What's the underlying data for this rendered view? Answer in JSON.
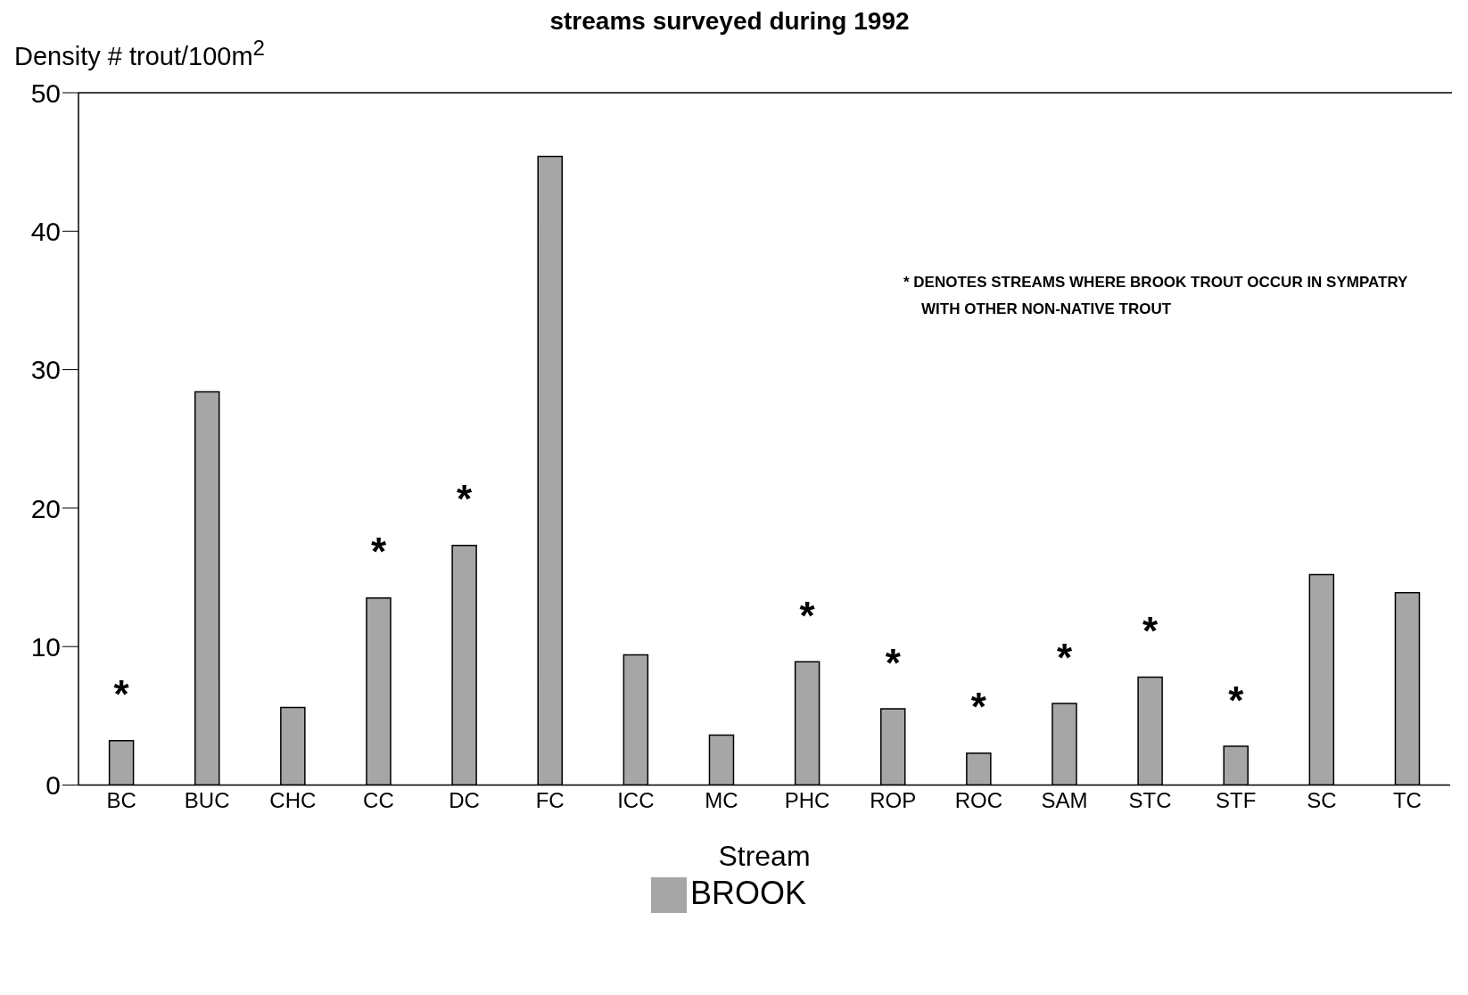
{
  "chart_data": {
    "type": "bar",
    "title": "streams surveyed during 1992",
    "xlabel": "Stream",
    "ylabel": "Density # trout/100m$^{2}$",
    "categories": [
      "BC",
      "BUC",
      "CHC",
      "CC",
      "DC",
      "FC",
      "ICC",
      "MC",
      "PHC",
      "ROP",
      "ROC",
      "SAM",
      "STC",
      "STF",
      "SC",
      "TC"
    ],
    "series": [
      {
        "name": "BROOK",
        "color": "#a6a6a6",
        "values": [
          3.2,
          28.4,
          5.6,
          13.5,
          17.3,
          45.4,
          9.4,
          3.6,
          8.9,
          5.5,
          2.3,
          5.9,
          7.8,
          2.8,
          15.2,
          13.9
        ]
      }
    ],
    "ylim": [
      0,
      50
    ],
    "yticks": [
      0,
      10,
      20,
      30,
      40,
      50
    ],
    "grid": false,
    "legend": "bottom",
    "annotations": [
      "* DENOTES STREAMS WHERE BROOK TROUT OCCUR IN SYMPATRY WITH OTHER NON-NATIVE TROUT",
      {
        "text": "*",
        "x": "BC",
        "y": 3.2
      },
      {
        "text": "*",
        "x": "CC",
        "y": 13.5
      },
      {
        "text": "*",
        "x": "DC",
        "y": 17.3
      },
      {
        "text": "*",
        "x": "PHC",
        "y": 8.9
      },
      {
        "text": "*",
        "x": "ROP",
        "y": 5.5
      },
      {
        "text": "*",
        "x": "ROC",
        "y": 2.3
      },
      {
        "text": "*",
        "x": "SAM",
        "y": 5.9
      },
      {
        "text": "*",
        "x": "STC",
        "y": 7.8
      },
      {
        "text": "*",
        "x": "STF",
        "y": 2.8
      }
    ]
  }
}
